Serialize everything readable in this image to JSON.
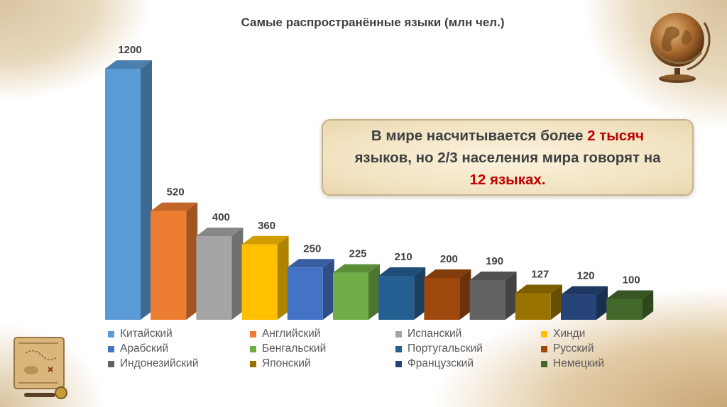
{
  "title": "Самые распространённые языки (млн чел.)",
  "info": {
    "line1_pre": "В мире насчитывается более ",
    "line1_hl": "2 тысяч",
    "line2": "языков, но 2/3 населения мира говорят на",
    "line3_hl": "12 языках."
  },
  "chart_data": {
    "type": "bar",
    "title": "Самые распространённые языки (млн чел.)",
    "categories": [
      "Китайский",
      "Английский",
      "Испанский",
      "Хинди",
      "Арабский",
      "Бенгальский",
      "Португальский",
      "Русский",
      "Индонезийский",
      "Японский",
      "Французский",
      "Немецкий"
    ],
    "values": [
      1200,
      520,
      400,
      360,
      250,
      225,
      210,
      200,
      190,
      127,
      120,
      100
    ],
    "colors": [
      "#5b9bd5",
      "#ed7d31",
      "#a5a5a5",
      "#ffc000",
      "#4472c4",
      "#70ad47",
      "#255e91",
      "#9e480e",
      "#636363",
      "#997300",
      "#264478",
      "#43682b"
    ],
    "bar_3d": true,
    "legend_position": "bottom",
    "grid": false
  },
  "legend": [
    {
      "label": "Китайский",
      "color": "#5b9bd5"
    },
    {
      "label": "Английский",
      "color": "#ed7d31"
    },
    {
      "label": "Испанский",
      "color": "#a5a5a5"
    },
    {
      "label": "Хинди",
      "color": "#ffc000"
    },
    {
      "label": "Арабский",
      "color": "#4472c4"
    },
    {
      "label": "Бенгальский",
      "color": "#70ad47"
    },
    {
      "label": "Португальский",
      "color": "#255e91"
    },
    {
      "label": "Русский",
      "color": "#9e480e"
    },
    {
      "label": "Индонезийский",
      "color": "#636363"
    },
    {
      "label": "Японский",
      "color": "#997300"
    },
    {
      "label": "Французский",
      "color": "#264478"
    },
    {
      "label": "Немецкий",
      "color": "#43682b"
    }
  ],
  "decor": {
    "globe_icon": "globe-icon",
    "map_icon": "treasure-map-icon"
  }
}
